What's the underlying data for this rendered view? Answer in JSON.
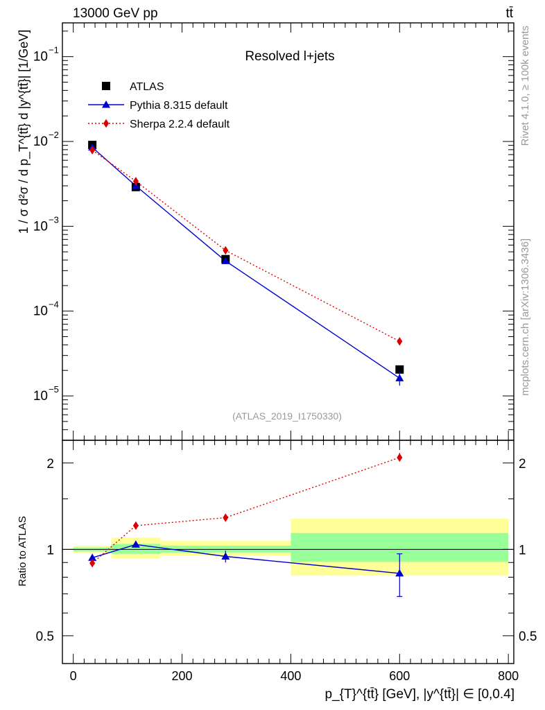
{
  "header": {
    "energy_label": "13000 GeV pp",
    "process_label": "tt̄"
  },
  "side_text": {
    "rivet": "Rivet 4.1.0, ≥ 100k events",
    "mcplots": "mcplots.cern.ch [arXiv:1306.3436]"
  },
  "chart_data": {
    "type": "scatter",
    "title": "Resolved l+jets",
    "analysis_label": "(ATLAS_2019_I1750330)",
    "ylabel": "1 / σ d²σ / d p_T^{tt̄} d |y^{tt̄}| [1/GeV]",
    "xlabel": "p_{T}^{tt̄} [GeV], |y^{tt̄}| ∈ [0,0.4]",
    "ratio_ylabel": "Ratio to ATLAS",
    "xlim": [
      -20,
      810
    ],
    "ylim": [
      3e-06,
      0.25
    ],
    "ratio_ylim": [
      0.4,
      2.4
    ],
    "x_ticks": [
      0,
      200,
      400,
      600,
      800
    ],
    "x_tick_labels": [
      "0",
      "200",
      "400",
      "600",
      "800"
    ],
    "y_ticks": [
      0.1,
      0.01,
      0.001,
      0.0001,
      1e-05
    ],
    "y_tick_labels": [
      {
        "base": "10",
        "exp": "−1"
      },
      {
        "base": "10",
        "exp": "−2"
      },
      {
        "base": "10",
        "exp": "−3"
      },
      {
        "base": "10",
        "exp": "−4"
      },
      {
        "base": "10",
        "exp": "−5"
      }
    ],
    "ratio_ticks": [
      0.5,
      1,
      2
    ],
    "ratio_tick_labels": [
      "0.5",
      "1",
      "2"
    ],
    "bins": [
      [
        0,
        70
      ],
      [
        70,
        160
      ],
      [
        160,
        400
      ],
      [
        400,
        800
      ]
    ],
    "series": [
      {
        "name": "ATLAS",
        "style": "data",
        "color": "#000000",
        "x": [
          35,
          115,
          280,
          600
        ],
        "y": [
          0.0091,
          0.0029,
          0.00041,
          2.05e-05
        ]
      },
      {
        "name": "Pythia 8.315 default",
        "style": "triangle",
        "color": "#0000cc",
        "x": [
          35,
          115,
          280,
          600
        ],
        "y": [
          0.0085,
          0.003,
          0.00039,
          1.62e-05
        ],
        "y_err": [
          0.0001,
          8e-05,
          1.5e-05,
          3e-06
        ],
        "ratio": [
          0.935,
          1.04,
          0.945,
          0.825
        ],
        "ratio_err": [
          0.02,
          0.025,
          0.045,
          0.14
        ]
      },
      {
        "name": "Sherpa 2.2.4 default",
        "style": "diamond",
        "color": "#dd0000",
        "x": [
          35,
          115,
          280,
          600
        ],
        "y": [
          0.0079,
          0.0034,
          0.00052,
          4.4e-05
        ],
        "y_err": [
          0.0001,
          8e-05,
          1e-05,
          1.5e-06
        ],
        "ratio": [
          0.895,
          1.21,
          1.29,
          2.09
        ],
        "ratio_err": [
          0.015,
          0.02,
          0.03,
          0.08
        ]
      }
    ],
    "uncertainty_bands": {
      "inner_color": "#99ff99",
      "outer_color": "#ffff99",
      "inner": [
        [
          0.985,
          1.015
        ],
        [
          0.965,
          1.045
        ],
        [
          0.975,
          1.03
        ],
        [
          0.905,
          1.14
        ]
      ],
      "outer": [
        [
          0.97,
          1.03
        ],
        [
          0.93,
          1.1
        ],
        [
          0.95,
          1.07
        ],
        [
          0.81,
          1.28
        ]
      ]
    }
  }
}
